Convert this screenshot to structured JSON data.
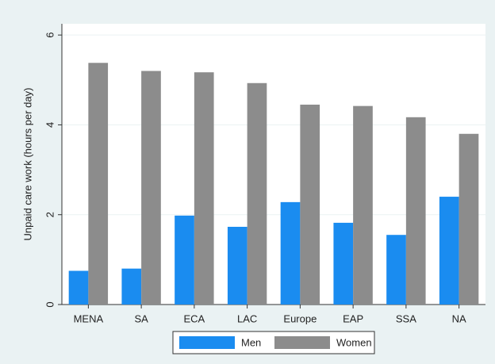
{
  "chart_data": {
    "type": "bar",
    "y_label": "Unpaid care work (hours per day)",
    "categories": [
      "MENA",
      "SA",
      "ECA",
      "LAC",
      "Europe",
      "EAP",
      "SSA",
      "NA"
    ],
    "series": [
      {
        "name": "Men",
        "color": "#1a8cf0",
        "values": [
          0.75,
          0.8,
          1.98,
          1.73,
          2.28,
          1.82,
          1.55,
          2.4
        ]
      },
      {
        "name": "Women",
        "color": "#8c8c8c",
        "values": [
          5.38,
          5.2,
          5.17,
          4.93,
          4.45,
          4.42,
          4.17,
          3.8
        ]
      }
    ],
    "ylim": [
      0,
      6.25
    ],
    "yticks": [
      0,
      2,
      4,
      6
    ],
    "grid": true,
    "legend": "bottom"
  }
}
